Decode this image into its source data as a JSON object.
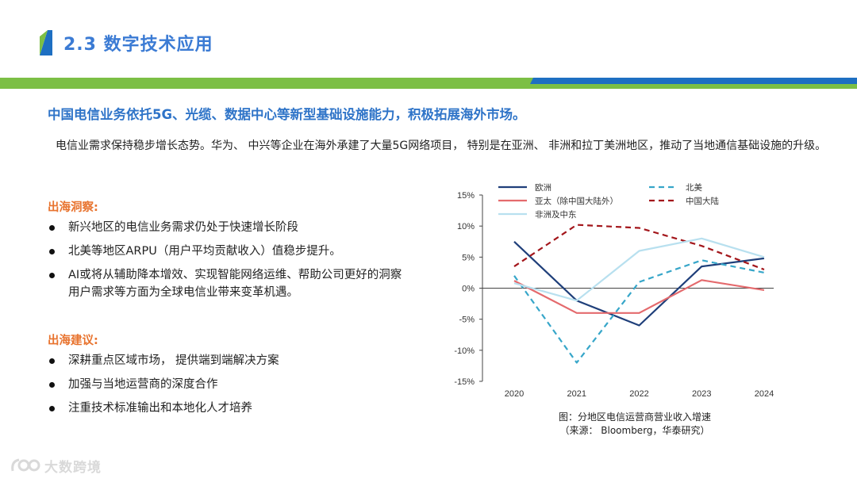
{
  "header": {
    "title": "2.3 数字技术应用",
    "colors": {
      "title": "#3b7bd4",
      "band_green": "#7cbf45",
      "band_blue": "#1e6fc2"
    }
  },
  "headline": "中国电信业务依托5G、光缆、数据中心等新型基础设施能力，积极拓展海外市场。",
  "intro": "电信业需求保持稳步增长态势。华为、 中兴等企业在海外承建了大量5G网络项目， 特别是在亚洲、 非洲和拉丁美洲地区，推动了当地通信基础设施的升级。",
  "insights": {
    "heading": "出海洞察:",
    "items": [
      "新兴地区的电信业务需求仍处于快速增长阶段",
      "北美等地区ARPU（用户平均贡献收入）值稳步提升。",
      "AI或将从辅助降本增效、实现智能网络运维、帮助公司更好的洞察用户需求等方面为全球电信业带来变革机遇。"
    ]
  },
  "suggestions": {
    "heading": "出海建议:",
    "items": [
      "深耕重点区域市场， 提供端到端解决方案",
      "加强与当地运营商的深度合作",
      "注重技术标准输出和本地化人才培养"
    ]
  },
  "caption": {
    "line1": "图：分地区电信运营商营业收入增速",
    "line2": "（来源： Bloomberg，华泰研究）"
  },
  "watermark": {
    "text": "大数跨境"
  },
  "chart_data": {
    "type": "line",
    "title": "分地区电信运营商营业收入增速",
    "x": [
      "2020",
      "2021",
      "2022",
      "2023",
      "2024"
    ],
    "ylim": [
      -15,
      15
    ],
    "yticks": [
      15,
      10,
      5,
      0,
      -5,
      -10,
      -15
    ],
    "ytick_labels": [
      "15%",
      "10%",
      "5%",
      "0%",
      "-5%",
      "-10%",
      "-15%"
    ],
    "grid": false,
    "legend_position": "top",
    "series": [
      {
        "name": "欧洲",
        "color": "#1f3f7a",
        "dash": "solid",
        "values": [
          7.5,
          -2.0,
          -6.0,
          3.5,
          4.8
        ]
      },
      {
        "name": "北美",
        "color": "#37a6c9",
        "dash": "dashed",
        "values": [
          2.0,
          -12.0,
          1.0,
          4.5,
          2.5
        ]
      },
      {
        "name": "亚太（除中国大陆外）",
        "color": "#e46a6d",
        "dash": "solid",
        "values": [
          1.2,
          -4.0,
          -4.0,
          1.3,
          -0.3
        ]
      },
      {
        "name": "中国大陆",
        "color": "#a3161b",
        "dash": "dashed",
        "values": [
          3.5,
          10.2,
          9.7,
          6.8,
          3.0
        ]
      },
      {
        "name": "非洲及中东",
        "color": "#b8e0ef",
        "dash": "solid",
        "values": [
          0.8,
          -2.0,
          6.0,
          8.0,
          5.0
        ]
      }
    ]
  }
}
